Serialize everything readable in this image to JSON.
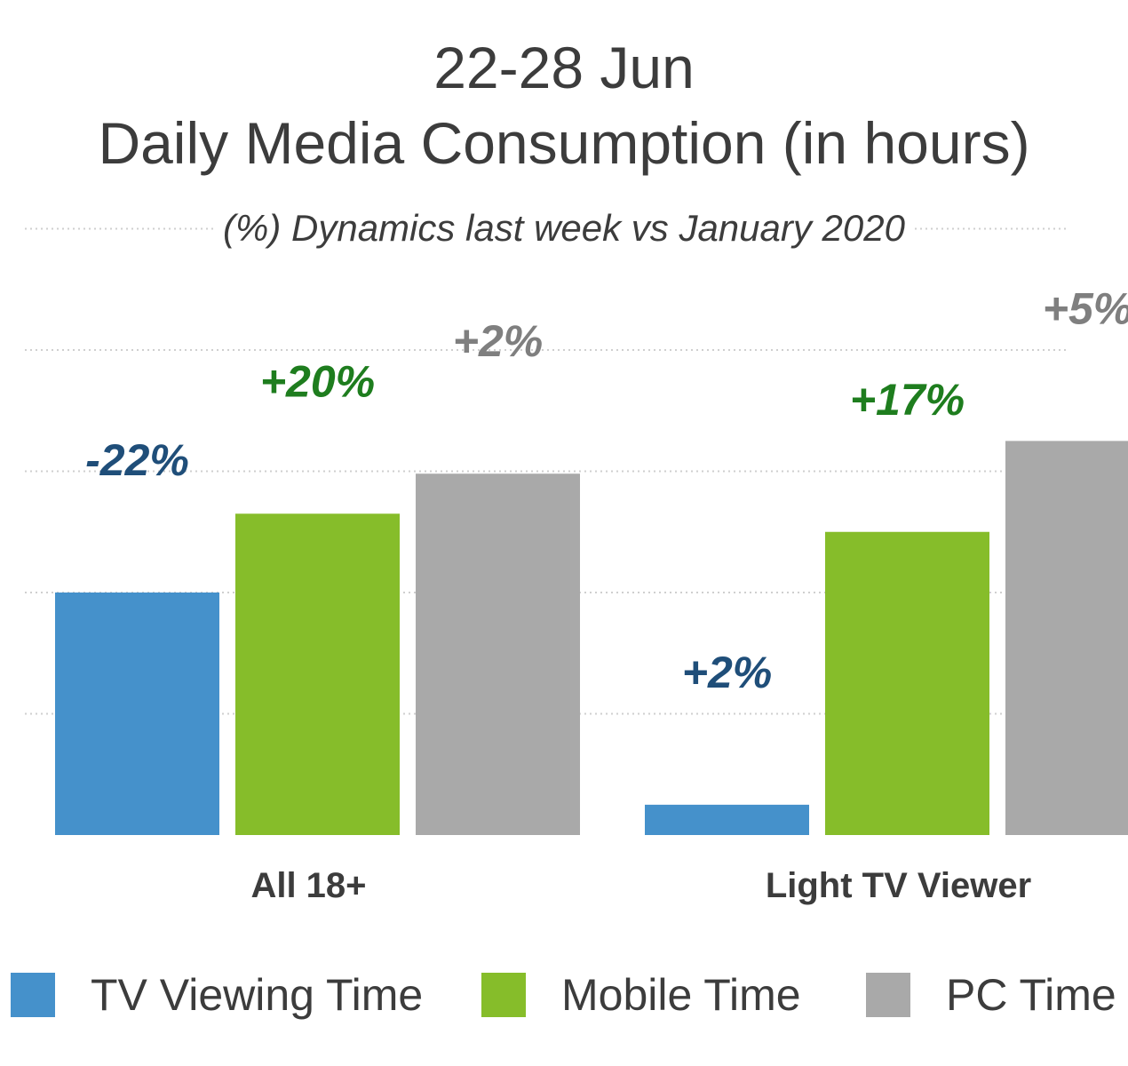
{
  "title_line1": "22-28 Jun",
  "title_line2": "Daily Media Consumption (in hours)",
  "subtitle": "(%) Dynamics last week  vs January 2020",
  "chart_data": {
    "type": "bar",
    "categories": [
      "All 18+",
      "Light TV Viewer"
    ],
    "series": [
      {
        "name": "TV Viewing Time",
        "color": "#4591cb",
        "label_color": "#1f4e79",
        "values": [
          2.0,
          0.25
        ],
        "labels": [
          "-22%",
          "+2%"
        ]
      },
      {
        "name": "Mobile Time",
        "color": "#86bd2a",
        "label_color": "#1e7d1e",
        "values": [
          2.65,
          2.5
        ],
        "labels": [
          "+20%",
          "+17%"
        ]
      },
      {
        "name": "PC Time",
        "color": "#a9a9a9",
        "label_color": "#7f7f7f",
        "values": [
          2.98,
          3.25
        ],
        "labels": [
          "+2%",
          "+5%"
        ]
      }
    ],
    "ylim": [
      0,
      5
    ],
    "grid": true,
    "legend": "bottom"
  }
}
